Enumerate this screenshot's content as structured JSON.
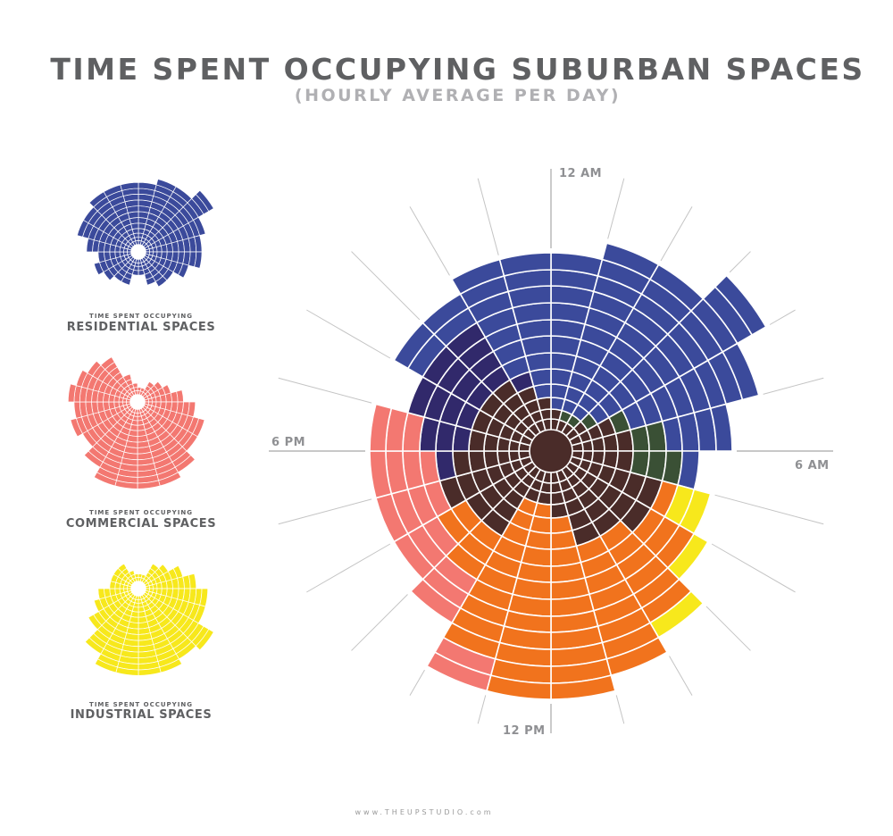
{
  "header": {
    "title": "TIME SPENT OCCUPYING SUBURBAN SPACES",
    "subtitle": "(HOURLY AVERAGE PER DAY)"
  },
  "legend": [
    {
      "caption": "TIME SPENT OCCUPYING",
      "label": "RESIDENTIAL SPACES",
      "color": "#3b4a9b"
    },
    {
      "caption": "TIME SPENT OCCUPYING",
      "label": "COMMERCIAL SPACES",
      "color": "#f37871"
    },
    {
      "caption": "TIME SPENT OCCUPYING",
      "label": "INDUSTRIAL SPACES",
      "color": "#f7e81c"
    }
  ],
  "footer": "www.THEUPSTUDIO.com",
  "chart_data": {
    "type": "polar-stacked",
    "title": "TIME SPENT OCCUPYING SUBURBAN SPACES",
    "subtitle": "(HOURLY AVERAGE PER DAY)",
    "direction": "clockwise from 12 AM at top",
    "sectors": 24,
    "hour_labels": {
      "top": "12 AM",
      "right": "6 AM",
      "bottom": "12 PM",
      "left": "6 PM"
    },
    "unit": "ring segments per hour",
    "max_rings": 15,
    "center_color": "#4a2c29",
    "main_series": [
      {
        "name": "brown",
        "color": "#4a2c29",
        "values": [
          2,
          1,
          1,
          2,
          4,
          5,
          5,
          7,
          7,
          6,
          6,
          4,
          3,
          3,
          6,
          6,
          7,
          6,
          5,
          5,
          5,
          5,
          4,
          3
        ]
      },
      {
        "name": "dark green",
        "color": "#3a5035",
        "values": [
          0,
          1,
          1,
          1,
          1,
          2,
          3,
          0,
          0,
          0,
          0,
          0,
          0,
          0,
          0,
          0,
          0,
          0,
          0,
          0,
          0,
          0,
          0,
          0
        ]
      },
      {
        "name": "dark navy",
        "color": "#31296b",
        "values": [
          0,
          0,
          0,
          0,
          0,
          0,
          0,
          0,
          0,
          0,
          0,
          0,
          0,
          0,
          0,
          0,
          0,
          1,
          3,
          4,
          4,
          4,
          1,
          0
        ]
      },
      {
        "name": "orange",
        "color": "#f1731d",
        "values": [
          0,
          0,
          0,
          0,
          0,
          0,
          0,
          1,
          3,
          6,
          8,
          11,
          12,
          10,
          3,
          2,
          0,
          0,
          0,
          0,
          0,
          0,
          0,
          0
        ]
      },
      {
        "name": "residential",
        "color": "#3b4a9b",
        "values": [
          10,
          11,
          11,
          12,
          8,
          4,
          1,
          0,
          0,
          0,
          0,
          0,
          0,
          0,
          0,
          0,
          0,
          0,
          0,
          0,
          2,
          2,
          7,
          9
        ]
      },
      {
        "name": "commercial",
        "color": "#f37871",
        "values": [
          0,
          0,
          0,
          0,
          0,
          0,
          0,
          0,
          0,
          0,
          0,
          0,
          0,
          2,
          3,
          3,
          4,
          4,
          3,
          0,
          0,
          0,
          0,
          0
        ]
      },
      {
        "name": "industrial",
        "color": "#f7e81c",
        "values": [
          0,
          0,
          0,
          0,
          0,
          0,
          0,
          2,
          1,
          1,
          0,
          0,
          0,
          0,
          0,
          0,
          0,
          0,
          0,
          0,
          0,
          0,
          0,
          0
        ]
      }
    ],
    "small_multiples": [
      {
        "name": "residential",
        "color": "#3b4a9b",
        "values": [
          12,
          13,
          13,
          15,
          12,
          11,
          11,
          9,
          7,
          7,
          6,
          4,
          4,
          6,
          6,
          7,
          8,
          7,
          9,
          11,
          11,
          12,
          12,
          12
        ]
      },
      {
        "name": "commercial",
        "color": "#f37871",
        "values": [
          2,
          2,
          4,
          5,
          6,
          8,
          10,
          12,
          12,
          14,
          15,
          15,
          15,
          15,
          13,
          11,
          12,
          11,
          12,
          11,
          10,
          9,
          5,
          3
        ]
      },
      {
        "name": "industrial",
        "color": "#f7e81c",
        "values": [
          2,
          2,
          5,
          6,
          8,
          10,
          12,
          12,
          15,
          14,
          15,
          15,
          15,
          15,
          13,
          10,
          8,
          7,
          5,
          5,
          5,
          5,
          3,
          2
        ]
      }
    ]
  }
}
